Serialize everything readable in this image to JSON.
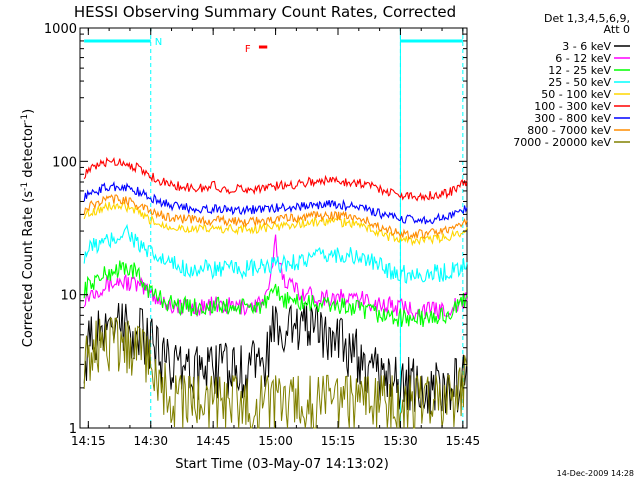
{
  "chart_data": {
    "type": "line",
    "title": "HESSI Observing Summary Count Rates, Corrected",
    "xlabel": "Start Time (03-May-07 14:13:02)",
    "ylabel": "Corrected Count Rate (s-1 detector-1)",
    "ylabel_parts": [
      "Corrected Count Rate (s",
      "-1",
      " detector",
      "-1",
      ")"
    ],
    "yscale": "log",
    "ylim": [
      1,
      1000
    ],
    "xlim_min": [
      853,
      946
    ],
    "x_ticks": [
      {
        "label": "14:15",
        "min": 855
      },
      {
        "label": "14:30",
        "min": 870
      },
      {
        "label": "14:45",
        "min": 885
      },
      {
        "label": "15:00",
        "min": 900
      },
      {
        "label": "15:15",
        "min": 915
      },
      {
        "label": "15:30",
        "min": 930
      },
      {
        "label": "15:45",
        "min": 945
      }
    ],
    "y_ticks": [
      {
        "label": "1",
        "value": 1
      },
      {
        "label": "10",
        "value": 10
      },
      {
        "label": "100",
        "value": 100
      },
      {
        "label": "1000",
        "value": 1000
      }
    ],
    "legend_header": [
      "Det 1,3,4,5,6,9,",
      "Att 0"
    ],
    "legend_position": "right",
    "series": [
      {
        "name": "3 - 6 keV",
        "color": "#000000",
        "x": [
          854,
          856,
          858,
          860,
          862,
          864,
          866,
          868,
          870,
          872,
          874,
          876,
          878,
          880,
          882,
          884,
          886,
          888,
          890,
          892,
          894,
          896,
          898,
          899,
          900,
          901,
          902,
          904,
          906,
          908,
          910,
          912,
          914,
          916,
          918,
          920,
          922,
          924,
          926,
          928,
          930,
          932,
          934,
          936,
          938,
          940,
          942,
          944,
          946
        ],
        "y": [
          3.2,
          5.0,
          5.5,
          5.6,
          5.6,
          5.5,
          5.3,
          5.0,
          4.4,
          3.5,
          3.0,
          2.7,
          2.6,
          2.7,
          2.6,
          2.6,
          2.7,
          2.8,
          2.6,
          2.7,
          2.9,
          3.0,
          3.4,
          5.0,
          8.5,
          6.0,
          4.2,
          5.5,
          5.6,
          5.6,
          5.5,
          5.4,
          4.8,
          4.2,
          3.8,
          3.5,
          3.0,
          2.6,
          2.6,
          2.4,
          2.2,
          2.2,
          2.1,
          2.1,
          2.0,
          2.0,
          2.2,
          2.1,
          3.4
        ]
      },
      {
        "name": "6 - 12 keV",
        "color": "#ff00ff",
        "x": [
          854,
          856,
          858,
          860,
          862,
          864,
          866,
          868,
          870,
          872,
          874,
          876,
          878,
          880,
          882,
          884,
          886,
          888,
          890,
          892,
          894,
          896,
          898,
          899,
          900,
          901,
          902,
          904,
          906,
          908,
          910,
          912,
          914,
          916,
          918,
          920,
          922,
          924,
          926,
          928,
          930,
          932,
          934,
          936,
          938,
          940,
          942,
          944,
          946
        ],
        "y": [
          9.5,
          10.5,
          11.5,
          12.0,
          12.5,
          12.5,
          12.0,
          11.2,
          10.2,
          9.3,
          8.5,
          8.2,
          8.0,
          8.0,
          8.1,
          8.2,
          8.3,
          8.2,
          8.1,
          8.1,
          8.3,
          8.5,
          9.5,
          14.0,
          25.0,
          17.0,
          13.5,
          11.5,
          10.5,
          10.0,
          9.8,
          9.6,
          9.5,
          9.4,
          9.3,
          9.2,
          8.9,
          8.7,
          8.4,
          8.2,
          8.0,
          7.8,
          7.7,
          7.6,
          7.6,
          7.7,
          7.9,
          8.2,
          9.0
        ]
      },
      {
        "name": "12 - 25 keV",
        "color": "#00ff00",
        "x": [
          854,
          856,
          858,
          860,
          862,
          864,
          866,
          868,
          870,
          872,
          874,
          876,
          878,
          880,
          882,
          884,
          886,
          888,
          890,
          892,
          894,
          896,
          898,
          899,
          900,
          901,
          902,
          904,
          906,
          908,
          910,
          912,
          914,
          916,
          918,
          920,
          922,
          924,
          926,
          928,
          930,
          932,
          934,
          936,
          938,
          940,
          942,
          944,
          946
        ],
        "y": [
          11.0,
          12.5,
          13.5,
          14.5,
          15.5,
          16.0,
          15.0,
          12.5,
          10.5,
          9.5,
          8.8,
          8.4,
          8.2,
          8.1,
          8.1,
          8.0,
          8.2,
          8.1,
          8.0,
          8.0,
          8.1,
          8.3,
          8.6,
          9.4,
          10.5,
          9.8,
          9.3,
          8.9,
          8.7,
          8.6,
          8.5,
          8.4,
          8.3,
          8.2,
          8.0,
          7.7,
          7.4,
          7.2,
          7.0,
          6.8,
          6.7,
          6.6,
          6.6,
          6.6,
          6.7,
          6.9,
          7.3,
          8.0,
          10.0
        ]
      },
      {
        "name": "25 - 50 keV",
        "color": "#00ffff",
        "x": [
          854,
          856,
          858,
          860,
          862,
          864,
          866,
          868,
          870,
          872,
          874,
          876,
          878,
          880,
          882,
          884,
          886,
          888,
          890,
          892,
          894,
          896,
          898,
          900,
          902,
          904,
          906,
          908,
          910,
          912,
          914,
          916,
          918,
          920,
          922,
          924,
          926,
          928,
          930,
          932,
          934,
          936,
          938,
          940,
          942,
          944,
          946
        ],
        "y": [
          20,
          23,
          24,
          25,
          27,
          31,
          26,
          22,
          20,
          18.5,
          17.5,
          16.5,
          16.0,
          15.5,
          15.5,
          15.5,
          15.5,
          15.5,
          15.5,
          15.5,
          15.5,
          15.8,
          16.0,
          16.5,
          17.0,
          17.5,
          18.0,
          18.5,
          19.0,
          19.5,
          20.0,
          20.0,
          19.5,
          19.0,
          18.0,
          17.0,
          16.0,
          15.0,
          14.5,
          14.3,
          14.3,
          14.3,
          14.4,
          14.6,
          15.0,
          16.0,
          17.5
        ]
      },
      {
        "name": "50 - 100 keV",
        "color": "#ffd700",
        "x": [
          854,
          856,
          858,
          860,
          862,
          864,
          866,
          868,
          870,
          872,
          874,
          876,
          878,
          880,
          882,
          884,
          886,
          888,
          890,
          892,
          894,
          896,
          898,
          900,
          902,
          904,
          906,
          908,
          910,
          912,
          914,
          916,
          918,
          920,
          922,
          924,
          926,
          928,
          930,
          932,
          934,
          936,
          938,
          940,
          942,
          944,
          946
        ],
        "y": [
          40,
          42,
          44,
          46,
          46,
          45,
          43,
          39,
          36,
          34,
          33,
          32,
          31.5,
          31,
          31,
          31,
          31,
          31,
          31,
          31,
          31,
          31.5,
          32,
          32.5,
          33,
          33.5,
          34,
          34.5,
          35,
          35.5,
          35.5,
          35,
          34.5,
          33.5,
          32,
          30,
          28,
          27,
          26,
          25.5,
          25.5,
          25.5,
          26,
          26.5,
          27.5,
          29,
          32
        ]
      },
      {
        "name": "100 - 300 keV",
        "color": "#ff0000",
        "x": [
          854,
          856,
          858,
          860,
          862,
          864,
          866,
          868,
          870,
          872,
          874,
          876,
          878,
          880,
          882,
          884,
          885,
          886,
          888,
          890,
          892,
          894,
          896,
          898,
          900,
          902,
          904,
          906,
          908,
          910,
          912,
          914,
          916,
          918,
          920,
          922,
          924,
          926,
          928,
          930,
          932,
          934,
          936,
          938,
          940,
          942,
          944,
          946
        ],
        "y": [
          80,
          88,
          95,
          100,
          100,
          97,
          92,
          85,
          78,
          72,
          68,
          66,
          64,
          63,
          63,
          63,
          68,
          63,
          62,
          62,
          62,
          62,
          63,
          64,
          65,
          66,
          67,
          69,
          70,
          71,
          72,
          72,
          71,
          70,
          69,
          67,
          64,
          61,
          58,
          56,
          55,
          55,
          55,
          56,
          57,
          59,
          64,
          72
        ]
      },
      {
        "name": "300 - 800 keV",
        "color": "#0000ff",
        "x": [
          854,
          856,
          858,
          860,
          862,
          864,
          866,
          868,
          870,
          872,
          874,
          876,
          878,
          880,
          882,
          884,
          886,
          888,
          890,
          892,
          894,
          896,
          898,
          900,
          902,
          904,
          906,
          908,
          910,
          912,
          914,
          916,
          918,
          920,
          922,
          924,
          926,
          928,
          930,
          932,
          934,
          936,
          938,
          940,
          942,
          944,
          946
        ],
        "y": [
          54,
          58,
          62,
          64,
          65,
          64,
          61,
          57,
          53,
          50,
          48,
          46,
          45,
          44.5,
          44,
          44,
          44,
          43.5,
          43.5,
          43.5,
          43.5,
          43.5,
          44,
          44.5,
          45,
          45.5,
          46,
          46.5,
          47,
          47.5,
          47.5,
          47,
          46,
          45,
          43.5,
          41.5,
          39.5,
          38,
          37,
          36.5,
          36.5,
          36.5,
          37,
          37.5,
          38.5,
          41,
          45
        ]
      },
      {
        "name": "800 - 7000 keV",
        "color": "#ff8c00",
        "x": [
          854,
          856,
          858,
          860,
          862,
          864,
          866,
          868,
          870,
          872,
          874,
          876,
          878,
          880,
          882,
          884,
          886,
          888,
          890,
          892,
          894,
          896,
          898,
          900,
          902,
          904,
          906,
          908,
          910,
          912,
          914,
          916,
          918,
          920,
          922,
          924,
          926,
          928,
          930,
          932,
          934,
          936,
          938,
          940,
          942,
          944,
          946
        ],
        "y": [
          43,
          47,
          50,
          52,
          52,
          51,
          49,
          45,
          42,
          40,
          38.5,
          37.5,
          37,
          36.5,
          36,
          36,
          36,
          35.5,
          35.5,
          35.5,
          35.5,
          35.5,
          36,
          36.5,
          37,
          37.5,
          38,
          38.5,
          39,
          39.5,
          39.5,
          39,
          38,
          37,
          35.5,
          33.5,
          31.5,
          30,
          29,
          28.5,
          28.5,
          28.5,
          29,
          29.5,
          30.5,
          32.5,
          36
        ]
      },
      {
        "name": "7000 - 20000 keV",
        "color": "#808000",
        "x": [
          854,
          856,
          858,
          860,
          862,
          864,
          866,
          868,
          870,
          872,
          874,
          876,
          878,
          880,
          882,
          884,
          886,
          888,
          890,
          892,
          894,
          896,
          898,
          900,
          902,
          904,
          906,
          908,
          910,
          912,
          914,
          916,
          918,
          920,
          922,
          924,
          926,
          928,
          930,
          932,
          934,
          936,
          938,
          940,
          942,
          944,
          946
        ],
        "y": [
          2.9,
          4.0,
          4.3,
          4.3,
          4.3,
          4.2,
          3.9,
          3.5,
          2.9,
          2.2,
          1.9,
          1.6,
          1.6,
          1.55,
          1.6,
          1.6,
          1.55,
          1.6,
          1.6,
          1.55,
          1.6,
          1.6,
          1.6,
          1.6,
          1.6,
          1.55,
          1.6,
          1.6,
          1.55,
          1.6,
          1.6,
          1.55,
          1.6,
          1.6,
          1.55,
          1.6,
          1.6,
          1.6,
          1.55,
          1.6,
          1.6,
          1.55,
          1.6,
          1.6,
          1.6,
          1.7,
          2.9
        ]
      }
    ],
    "annotations": [
      {
        "text": "N",
        "color": "#00ffff",
        "x_range": [
          854,
          870
        ],
        "type": "night"
      },
      {
        "text": "",
        "color": "#00ffff",
        "x_range": [
          930,
          945
        ],
        "type": "night"
      },
      {
        "text": "F",
        "color": "#ff0000",
        "x_range": [
          896,
          898
        ],
        "type": "flare"
      }
    ],
    "night_boundaries_min": [
      870,
      930,
      945
    ],
    "grid": false
  },
  "footer": {
    "timestamp": "14-Dec-2009 14:28"
  }
}
